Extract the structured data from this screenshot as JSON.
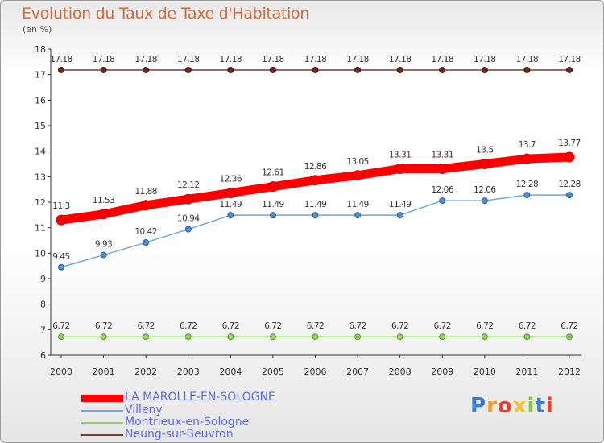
{
  "title": "Evolution du Taux de Taxe d'Habitation",
  "unit_label": "(en %)",
  "chart_data": {
    "type": "line",
    "title": "Evolution du Taux de Taxe d'Habitation",
    "ylabel": "(en %)",
    "xlabel": "",
    "x": [
      "2000",
      "2001",
      "2002",
      "2003",
      "2004",
      "2005",
      "2006",
      "2007",
      "2008",
      "2009",
      "2010",
      "2011",
      "2012"
    ],
    "ylim": [
      6,
      18
    ],
    "yticks": [
      "6",
      "7",
      "8",
      "9",
      "10",
      "11",
      "12",
      "13",
      "14",
      "15",
      "16",
      "17",
      "18"
    ],
    "grid": false,
    "legend_position": "bottom-left",
    "series": [
      {
        "name": "LA MAROLLE-EN-SOLOGNE",
        "color": "#ff0000",
        "values": [
          11.3,
          11.53,
          11.88,
          12.12,
          12.36,
          12.61,
          12.86,
          13.05,
          13.31,
          13.31,
          13.5,
          13.7,
          13.77
        ],
        "labels": [
          "11.3",
          "11.53",
          "11.88",
          "12.12",
          "12.36",
          "12.61",
          "12.86",
          "13.05",
          "13.31",
          "13.31",
          "13.5",
          "13.7",
          "13.77"
        ]
      },
      {
        "name": "Villeny",
        "color": "#6fa8dc",
        "values": [
          9.45,
          9.93,
          10.42,
          10.94,
          11.49,
          11.49,
          11.49,
          11.49,
          11.49,
          12.06,
          12.06,
          12.28,
          12.28
        ],
        "labels": [
          "9.45",
          "9.93",
          "10.42",
          "10.94",
          "11.49",
          "11.49",
          "11.49",
          "11.49",
          "11.49",
          "12.06",
          "12.06",
          "12.28",
          "12.28"
        ]
      },
      {
        "name": "Montrieux-en-Sologne",
        "color": "#93d46a",
        "values": [
          6.72,
          6.72,
          6.72,
          6.72,
          6.72,
          6.72,
          6.72,
          6.72,
          6.72,
          6.72,
          6.72,
          6.72,
          6.72
        ],
        "labels": [
          "6.72",
          "6.72",
          "6.72",
          "6.72",
          "6.72",
          "6.72",
          "6.72",
          "6.72",
          "6.72",
          "6.72",
          "6.72",
          "6.72",
          "6.72"
        ]
      },
      {
        "name": "Neung-sur-Beuvron",
        "color": "#7a3b3b",
        "values": [
          17.18,
          17.18,
          17.18,
          17.18,
          17.18,
          17.18,
          17.18,
          17.18,
          17.18,
          17.18,
          17.18,
          17.18,
          17.18
        ],
        "labels": [
          "17.18",
          "17.18",
          "17.18",
          "17.18",
          "17.18",
          "17.18",
          "17.18",
          "17.18",
          "17.18",
          "17.18",
          "17.18",
          "17.18",
          "17.18"
        ]
      }
    ]
  },
  "legend": [
    {
      "label": "LA MAROLLE-EN-SOLOGNE",
      "color": "#ff0000"
    },
    {
      "label": "Villeny",
      "color": "#6fa8dc"
    },
    {
      "label": "Montrieux-en-Sologne",
      "color": "#93d46a"
    },
    {
      "label": "Neung-sur-Beuvron",
      "color": "#7a3b3b"
    }
  ],
  "logo": {
    "text": "Proxiti",
    "letter_colors": [
      "#3a7fd5",
      "#f29a2e",
      "#e2452f",
      "#f2c12e",
      "#8cc63f",
      "#3a7fd5",
      "#e2452f"
    ]
  }
}
